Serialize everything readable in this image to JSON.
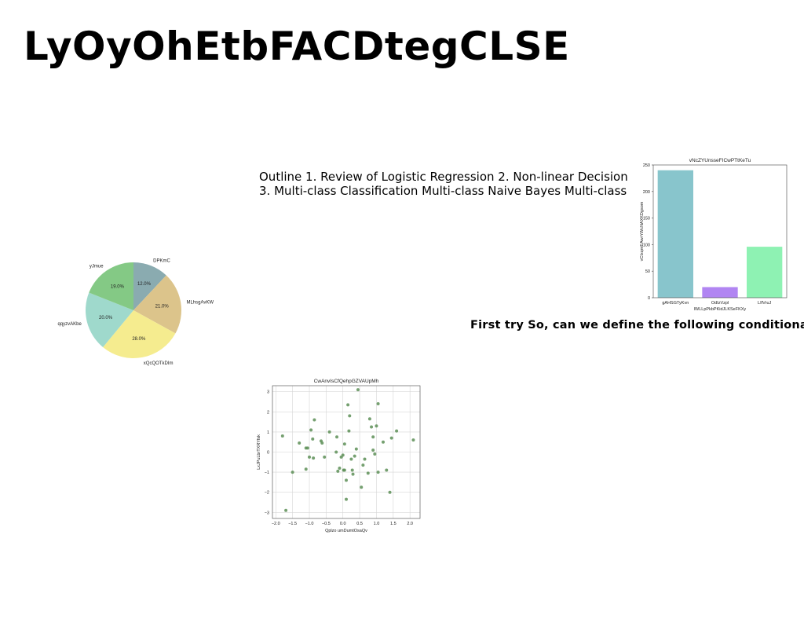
{
  "slide": {
    "title": "LyOyOhEtbFACDtegCLSE",
    "outline_text": "Outline 1. Review of Logistic Regression 2. Non-linear Decision 3. Multi-class Classification Multi-class Naive Bayes Multi-class",
    "note_text": "First try So, can we define the following conditional"
  },
  "chart_data": [
    {
      "type": "pie",
      "labels": [
        "DPKmC",
        "MLhsgAvKW",
        "xQcQOTkDIm",
        "qqyzvAKbe",
        "yJmue"
      ],
      "values": [
        12.0,
        21.0,
        28.0,
        20.0,
        19.0
      ],
      "pct_labels": [
        "12.0%",
        "21.0%",
        "28.0%",
        "20.0%",
        "19.0%"
      ],
      "colors": [
        "#8aabb0",
        "#dcc48b",
        "#f5ec8f",
        "#9fd9cc",
        "#84c985"
      ],
      "start_angle_deg": 90,
      "direction": "clockwise"
    },
    {
      "type": "bar",
      "title": "vNcZYUnsseFICwPTtKeTu",
      "xlabel": "lWLLpPkbPKidJLKSeFKXy",
      "ylabel": "vCIxqmEAwrYWcNAXKDgsom",
      "categories": [
        "gAHSGTyKvn",
        "OdIzVzpl",
        "LIfVruJ"
      ],
      "values": [
        240,
        20,
        96
      ],
      "colors": [
        "#88c5cc",
        "#b185f2",
        "#8ef2b3"
      ],
      "ylim": [
        0,
        250
      ],
      "yticks": [
        0,
        50,
        100,
        150,
        200,
        250
      ]
    },
    {
      "type": "scatter",
      "title": "CwAnvIsCfQehpGZVAUpMh",
      "xlabel": "Qplzo umDumtOsaQv",
      "ylabel": "LxJPuLbrTXRYfsk",
      "color": "#5d8f57",
      "xlim": [
        -2.1,
        2.3
      ],
      "ylim": [
        -3.3,
        3.3
      ],
      "xticks": [
        -2.0,
        -1.5,
        -1.0,
        -0.5,
        0.0,
        0.5,
        1.0,
        1.5,
        2.0
      ],
      "yticks": [
        -3,
        -2,
        -1,
        0,
        1,
        2,
        3
      ],
      "grid": true,
      "points": [
        [
          -1.8,
          0.8
        ],
        [
          -1.7,
          -2.9
        ],
        [
          -1.5,
          -1.0
        ],
        [
          -1.3,
          0.45
        ],
        [
          -1.1,
          0.2
        ],
        [
          -1.05,
          0.2
        ],
        [
          -1.1,
          -0.85
        ],
        [
          -1.0,
          -0.25
        ],
        [
          -0.95,
          1.1
        ],
        [
          -0.9,
          0.65
        ],
        [
          -0.88,
          -0.3
        ],
        [
          -0.85,
          1.6
        ],
        [
          -0.65,
          0.55
        ],
        [
          -0.62,
          0.45
        ],
        [
          -0.55,
          -0.25
        ],
        [
          -0.4,
          1.0
        ],
        [
          -0.2,
          0.0
        ],
        [
          -0.18,
          0.75
        ],
        [
          -0.15,
          -0.95
        ],
        [
          -0.1,
          -0.8
        ],
        [
          -0.05,
          -0.25
        ],
        [
          0.0,
          -0.15
        ],
        [
          0.02,
          -0.9
        ],
        [
          0.05,
          0.4
        ],
        [
          0.05,
          -0.9
        ],
        [
          0.1,
          -2.35
        ],
        [
          0.1,
          -1.4
        ],
        [
          0.15,
          2.35
        ],
        [
          0.18,
          1.05
        ],
        [
          0.2,
          1.8
        ],
        [
          0.25,
          -0.35
        ],
        [
          0.28,
          -0.9
        ],
        [
          0.3,
          -1.1
        ],
        [
          0.35,
          -0.2
        ],
        [
          0.4,
          0.15
        ],
        [
          0.45,
          3.1
        ],
        [
          0.55,
          -1.75
        ],
        [
          0.6,
          -0.65
        ],
        [
          0.65,
          -0.35
        ],
        [
          0.75,
          -1.05
        ],
        [
          0.8,
          1.65
        ],
        [
          0.85,
          1.25
        ],
        [
          0.9,
          0.75
        ],
        [
          0.9,
          0.1
        ],
        [
          0.95,
          -0.1
        ],
        [
          1.0,
          1.3
        ],
        [
          1.05,
          2.4
        ],
        [
          1.05,
          -1.0
        ],
        [
          1.2,
          0.5
        ],
        [
          1.3,
          -0.9
        ],
        [
          1.4,
          -2.0
        ],
        [
          1.45,
          0.7
        ],
        [
          1.6,
          1.05
        ],
        [
          2.1,
          0.6
        ]
      ]
    }
  ]
}
